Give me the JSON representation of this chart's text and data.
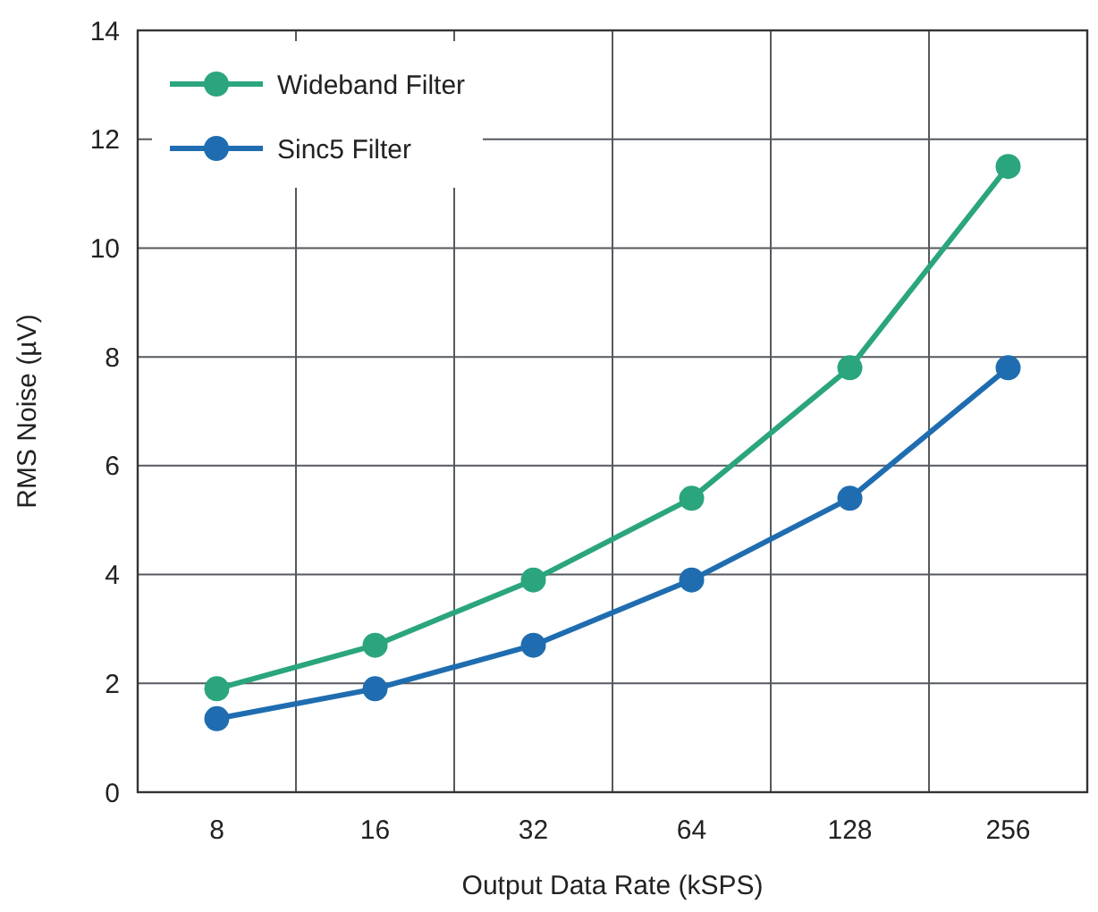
{
  "chart_data": {
    "type": "line",
    "xlabel": "Output Data Rate (kSPS)",
    "ylabel": "RMS Noise (µV)",
    "categories": [
      "8",
      "16",
      "32",
      "64",
      "128",
      "256"
    ],
    "series": [
      {
        "name": "Wideband Filter",
        "color": "#2ba57e",
        "values": [
          1.9,
          2.7,
          3.9,
          5.4,
          7.8,
          11.5
        ]
      },
      {
        "name": "Sinc5 Filter",
        "color": "#1f6db0",
        "values": [
          1.35,
          1.9,
          2.7,
          3.9,
          5.4,
          7.8
        ]
      }
    ],
    "ylim": [
      0,
      14
    ],
    "yticks": [
      0,
      2,
      4,
      6,
      8,
      10,
      12,
      14
    ],
    "grid": true,
    "legend": "top left",
    "marker": "circle",
    "line_style": "solid"
  }
}
